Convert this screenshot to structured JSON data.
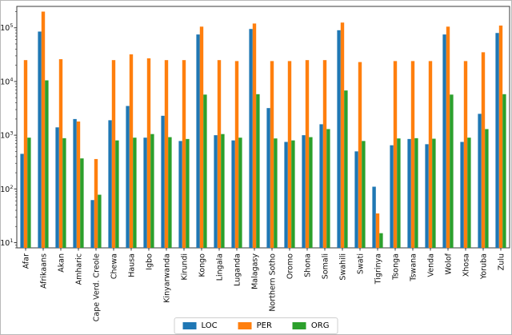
{
  "figure": {
    "background": "#ffffff",
    "axis_color": "#3a3a3a"
  },
  "chart_data": {
    "type": "bar",
    "title": "",
    "xlabel": "",
    "ylabel": "",
    "yscale": "log",
    "ylim": [
      8,
      250000
    ],
    "ytick_labels": [
      "10^1",
      "10^2",
      "10^3",
      "10^4",
      "10^5"
    ],
    "grid": false,
    "legend_position": "lower center, outside plot",
    "xtick_rotation": 90,
    "categories": [
      "Afar",
      "Afrikaans",
      "Akan",
      "Amharic",
      "Cape Verd. Creole",
      "Chewa",
      "Hausa",
      "Igbo",
      "Kinyarwanda",
      "Kirundi",
      "Kongo",
      "Lingala",
      "Luganda",
      "Malagasy",
      "Northern Sotho",
      "Oromo",
      "Shona",
      "Somali",
      "Swahili",
      "Swati",
      "Tigrinya",
      "Tsonga",
      "Tswana",
      "Venda",
      "Wolof",
      "Xhosa",
      "Yoruba",
      "Zulu"
    ],
    "series": [
      {
        "name": "LOC",
        "color": "#1f77b4",
        "values": [
          450,
          85000,
          1400,
          2000,
          62,
          1900,
          3500,
          900,
          2300,
          780,
          75000,
          1000,
          800,
          95000,
          3200,
          750,
          1000,
          1600,
          90000,
          500,
          110,
          650,
          850,
          680,
          75000,
          750,
          2500,
          80000
        ]
      },
      {
        "name": "PER",
        "color": "#ff7f0e",
        "values": [
          25000,
          200000,
          26000,
          1800,
          360,
          25000,
          32000,
          27000,
          25000,
          25000,
          105000,
          25000,
          24000,
          120000,
          24000,
          24000,
          25000,
          25000,
          125000,
          23000,
          35,
          24000,
          24000,
          24000,
          105000,
          24000,
          35000,
          110000
        ]
      },
      {
        "name": "ORG",
        "color": "#2ca02c",
        "values": [
          900,
          10500,
          880,
          370,
          78,
          800,
          900,
          1050,
          920,
          850,
          5700,
          1050,
          900,
          5800,
          870,
          800,
          920,
          1300,
          6800,
          780,
          15,
          870,
          880,
          860,
          5700,
          900,
          1300,
          5800
        ]
      }
    ]
  }
}
